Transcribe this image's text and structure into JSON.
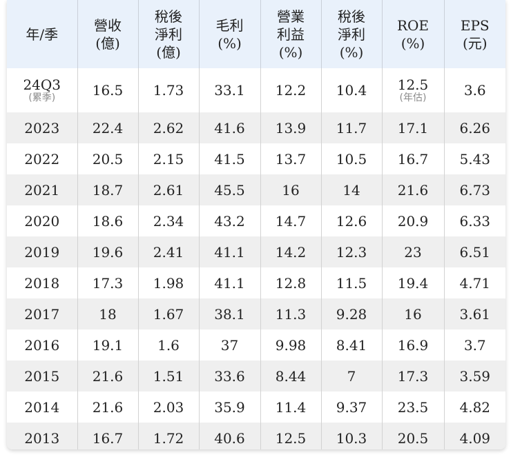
{
  "table": {
    "headers": [
      {
        "lines": [
          "年/季"
        ]
      },
      {
        "lines": [
          "營收",
          "(億)"
        ]
      },
      {
        "lines": [
          "稅後",
          "淨利",
          "(億)"
        ]
      },
      {
        "lines": [
          "毛利",
          "(%)"
        ]
      },
      {
        "lines": [
          "營業",
          "利益",
          "(%)"
        ]
      },
      {
        "lines": [
          "稅後",
          "淨利",
          "(%)"
        ]
      },
      {
        "lines": [
          "ROE",
          "(%)"
        ]
      },
      {
        "lines": [
          "EPS",
          "(元)"
        ]
      }
    ],
    "first_row": {
      "year": "24Q3",
      "year_note": "(累季)",
      "revenue": "16.5",
      "net_income": "1.73",
      "gross_margin": "33.1",
      "operating_margin": "12.2",
      "net_margin": "10.4",
      "roe": "12.5",
      "roe_note": "(年估)",
      "eps": "3.6"
    },
    "rows": [
      [
        "2023",
        "22.4",
        "2.62",
        "41.6",
        "13.9",
        "11.7",
        "17.1",
        "6.26"
      ],
      [
        "2022",
        "20.5",
        "2.15",
        "41.5",
        "13.7",
        "10.5",
        "16.7",
        "5.43"
      ],
      [
        "2021",
        "18.7",
        "2.61",
        "45.5",
        "16",
        "14",
        "21.6",
        "6.73"
      ],
      [
        "2020",
        "18.6",
        "2.34",
        "43.2",
        "14.7",
        "12.6",
        "20.9",
        "6.33"
      ],
      [
        "2019",
        "19.6",
        "2.41",
        "41.1",
        "14.2",
        "12.3",
        "23",
        "6.51"
      ],
      [
        "2018",
        "17.3",
        "1.98",
        "41.1",
        "12.8",
        "11.5",
        "19.4",
        "4.71"
      ],
      [
        "2017",
        "18",
        "1.67",
        "38.1",
        "11.3",
        "9.28",
        "16",
        "3.61"
      ],
      [
        "2016",
        "19.1",
        "1.6",
        "37",
        "9.98",
        "8.41",
        "16.9",
        "3.7"
      ],
      [
        "2015",
        "21.6",
        "1.51",
        "33.6",
        "8.44",
        "7",
        "17.3",
        "3.59"
      ],
      [
        "2014",
        "21.6",
        "2.03",
        "35.9",
        "11.4",
        "9.37",
        "23.5",
        "4.82"
      ],
      [
        "2013",
        "16.7",
        "1.72",
        "40.6",
        "12.5",
        "10.3",
        "20.5",
        "4.09"
      ]
    ]
  },
  "colors": {
    "header_bg": "#e9f1fb",
    "row_alt_bg": "#efefef",
    "note_text": "#8a8a8a"
  }
}
